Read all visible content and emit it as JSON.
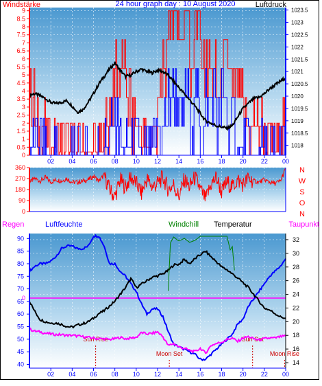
{
  "chart_data": [
    {
      "type": "line",
      "title": "24 hour graph day : 10 August 2020",
      "left_axis_label": "Windstärke",
      "right_axis_label": "Luftdruck",
      "x_ticks": [
        "02",
        "04",
        "06",
        "08",
        "10",
        "12",
        "14",
        "16",
        "18",
        "20",
        "22",
        "00"
      ],
      "left_ticks": [
        "0",
        "0.5",
        "1",
        "1.5",
        "2",
        "2.5",
        "3",
        "3.5",
        "4",
        "4.5",
        "5",
        "5.5",
        "6",
        "6.5",
        "7",
        "7.5",
        "8",
        "8.5",
        "9"
      ],
      "right_ticks": [
        "1018",
        "1018.5",
        "1019",
        "1019.5",
        "1020",
        "1020.5",
        "1021",
        "1021.5",
        "1022",
        "1022.5",
        "1023",
        "1023.5"
      ],
      "ylim_left": [
        0,
        9.2
      ],
      "ylim_right": [
        1017.6,
        1023.6
      ],
      "series": [
        {
          "axis": "right",
          "color": "#000000",
          "x": [
            0,
            0.5,
            1,
            1.5,
            2,
            2.5,
            3,
            3.5,
            4,
            4.5,
            5,
            5.5,
            6,
            6.5,
            7,
            7.5,
            8,
            8.5,
            9,
            9.5,
            10,
            10.5,
            11,
            11.5,
            12,
            12.5,
            13,
            13.5,
            14,
            14.5,
            15,
            15.5,
            16,
            16.5,
            17,
            17.5,
            18,
            18.5,
            19,
            19.5,
            20,
            20.5,
            21,
            21.5,
            22,
            22.5,
            23,
            23.5,
            24
          ],
          "values": [
            1020.05,
            1020.1,
            1020.02,
            1019.9,
            1019.75,
            1019.7,
            1019.75,
            1019.82,
            1019.6,
            1019.35,
            1019.45,
            1019.75,
            1020.1,
            1020.5,
            1020.8,
            1021.1,
            1021.35,
            1021.05,
            1020.8,
            1020.85,
            1021.0,
            1021.1,
            1021.0,
            1020.95,
            1021.05,
            1021.0,
            1020.85,
            1020.6,
            1020.35,
            1020.1,
            1019.85,
            1019.6,
            1019.3,
            1019.0,
            1018.9,
            1018.8,
            1018.75,
            1018.7,
            1018.8,
            1019.15,
            1019.5,
            1019.7,
            1019.9,
            1019.95,
            1020.1,
            1020.3,
            1020.45,
            1020.6,
            1020.75
          ]
        },
        {
          "axis": "left",
          "color": "#ff0000",
          "x": [
            0,
            0.5,
            1,
            1.5,
            2,
            2.5,
            3,
            3.5,
            4,
            4.5,
            5,
            5.5,
            6,
            6.5,
            7,
            7.5,
            8,
            8.5,
            9,
            9.5,
            10,
            10.5,
            11,
            11.5,
            12,
            12.5,
            13,
            13.5,
            14,
            14.5,
            15,
            15.5,
            16,
            16.5,
            17,
            17.5,
            18,
            18.5,
            19,
            19.5,
            20,
            20.5,
            21,
            21.5,
            22,
            22.5,
            23,
            23.5,
            24
          ],
          "values": [
            3.6,
            1.8,
            1.8,
            0.5,
            0.5,
            0.2,
            0.2,
            0.2,
            0.2,
            0.2,
            0.2,
            0.2,
            0.2,
            0.2,
            1.8,
            3.6,
            5.4,
            5.4,
            3.6,
            1.8,
            1.8,
            0.5,
            0.5,
            1.8,
            3.6,
            5.4,
            9,
            9,
            7.2,
            9,
            5.4,
            9,
            5.4,
            5.4,
            5.4,
            3.6,
            5.4,
            5.4,
            3.6,
            3.6,
            1.8,
            1.8,
            1.8,
            1.8,
            0.2,
            0.2,
            0.2,
            1.8,
            0.2
          ]
        },
        {
          "axis": "left",
          "color": "#0000ff",
          "x": [
            0,
            0.5,
            1,
            1.5,
            2,
            2.5,
            3,
            3.5,
            4,
            4.5,
            5,
            5.5,
            6,
            6.5,
            7,
            7.5,
            8,
            8.5,
            9,
            9.5,
            10,
            10.5,
            11,
            11.5,
            12,
            12.5,
            13,
            13.5,
            14,
            14.5,
            15,
            15.5,
            16,
            16.5,
            17,
            17.5,
            18,
            18.5,
            19,
            19.5,
            20,
            20.5,
            21,
            21.5,
            22,
            22.5,
            23,
            23.5,
            24
          ],
          "values": [
            0.5,
            0.5,
            0.5,
            0,
            0,
            0,
            0,
            0,
            0,
            0,
            0,
            0,
            0,
            0,
            0.5,
            1.8,
            1.8,
            0.5,
            0.5,
            0.5,
            0.5,
            0,
            0,
            0.5,
            1.8,
            1.8,
            3.6,
            3.6,
            1.8,
            3.6,
            1.8,
            3.6,
            1.8,
            3.6,
            3.6,
            1.8,
            3.6,
            1.8,
            1.8,
            0.5,
            0.5,
            0,
            0,
            0.5,
            0,
            0,
            0,
            0,
            0
          ]
        }
      ]
    },
    {
      "type": "line",
      "left_ticks": [
        "0",
        "90",
        "180",
        "270",
        "360"
      ],
      "right_labels": [
        "N",
        "W",
        "S",
        "O",
        "N"
      ],
      "ylim": [
        0,
        360
      ],
      "series": [
        {
          "color": "#ff0000",
          "x": [
            0,
            0.5,
            1,
            1.5,
            2,
            2.5,
            3,
            3.5,
            4,
            4.5,
            5,
            5.5,
            6,
            6.5,
            7,
            7.5,
            8,
            8.5,
            9,
            9.5,
            10,
            10.5,
            11,
            11.5,
            12,
            12.5,
            13,
            13.5,
            14,
            14.5,
            15,
            15.5,
            16,
            16.5,
            17,
            17.5,
            18,
            18.5,
            19,
            19.5,
            20,
            20.5,
            21,
            21.5,
            22,
            22.5,
            23,
            23.5,
            24
          ],
          "values": [
            240,
            270,
            250,
            280,
            240,
            260,
            250,
            270,
            240,
            240,
            250,
            260,
            290,
            250,
            300,
            180,
            120,
            260,
            200,
            280,
            230,
            150,
            270,
            200,
            230,
            280,
            180,
            220,
            120,
            260,
            200,
            280,
            180,
            100,
            220,
            280,
            160,
            240,
            200,
            260,
            220,
            270,
            250,
            240,
            260,
            240,
            230,
            250,
            350
          ]
        }
      ]
    },
    {
      "type": "line",
      "left_title": "Regen",
      "humidity_title": "Luftfeuchte",
      "windchill_title": "Windchill",
      "temperature_title": "Temperatur",
      "dewpoint_title": "Taupunkt",
      "x_ticks": [
        "02",
        "04",
        "06",
        "08",
        "10",
        "12",
        "14",
        "16",
        "18",
        "20",
        "22",
        "00"
      ],
      "left_ticks": [
        "40",
        "45",
        "50",
        "55",
        "60",
        "65",
        "70",
        "75",
        "80",
        "85",
        "90"
      ],
      "right_ticks": [
        "14",
        "16",
        "18",
        "20",
        "22",
        "24",
        "26",
        "28",
        "30",
        "32"
      ],
      "rain_zero_label": "0",
      "ylim_left": [
        38.5,
        92
      ],
      "ylim_right": [
        13.2,
        32.9
      ],
      "annotations": [
        {
          "text": "Sun Rise",
          "x": 6.2
        },
        {
          "text": "Moon Set",
          "x": 13.1
        },
        {
          "text": "Sun Set",
          "x": 20.9
        },
        {
          "text": "Moon Rise",
          "x": 23.9
        }
      ],
      "series": [
        {
          "axis": "left",
          "color": "#0000ff",
          "x": [
            0,
            0.5,
            1,
            1.5,
            2,
            2.5,
            3,
            3.5,
            4,
            4.5,
            5,
            5.5,
            6,
            6.5,
            7,
            7.5,
            8,
            8.5,
            9,
            9.5,
            10,
            10.5,
            11,
            11.5,
            12,
            12.5,
            13,
            13.5,
            14,
            14.5,
            15,
            15.5,
            16,
            16.5,
            17,
            17.5,
            18,
            18.5,
            19,
            19.5,
            20,
            20.5,
            21,
            21.5,
            22,
            22.5,
            23,
            23.5,
            24
          ],
          "values": [
            77,
            79,
            80,
            80,
            81,
            83,
            86,
            87,
            87,
            86,
            86,
            87,
            91,
            91,
            87,
            80,
            80,
            77,
            75,
            72,
            69,
            64,
            60,
            62,
            62,
            59,
            53,
            48,
            47,
            46,
            45,
            44,
            42,
            42,
            44,
            46,
            48,
            50,
            52,
            56,
            58,
            63,
            66,
            69,
            72,
            75,
            77,
            79,
            82
          ]
        },
        {
          "axis": "right",
          "color": "#000000",
          "x": [
            0,
            0.5,
            1,
            1.5,
            2,
            2.5,
            3,
            3.5,
            4,
            4.5,
            5,
            5.5,
            6,
            6.5,
            7,
            7.5,
            8,
            8.5,
            9,
            9.5,
            10,
            10.5,
            11,
            11.5,
            12,
            12.5,
            13,
            13.5,
            14,
            14.5,
            15,
            15.5,
            16,
            16.5,
            17,
            17.5,
            18,
            18.5,
            19,
            19.5,
            20,
            20.5,
            21,
            21.5,
            22,
            22.5,
            23,
            23.5,
            24
          ],
          "values": [
            23,
            21.5,
            20.3,
            20,
            19.8,
            19.8,
            19.6,
            19.3,
            19.2,
            19.5,
            19.7,
            20,
            20.5,
            21.2,
            21.6,
            22.3,
            23,
            24,
            25,
            26.3,
            25,
            25.5,
            26,
            26.5,
            26.7,
            27,
            27.5,
            28.3,
            28.4,
            29.1,
            28.5,
            29.2,
            29.8,
            30.3,
            29.5,
            28.8,
            28,
            27.6,
            27,
            26.4,
            25.7,
            25,
            24,
            23,
            22,
            21.7,
            21.2,
            20.7,
            20.5
          ]
        },
        {
          "axis": "right",
          "color": "#ff00ff",
          "x": [
            0,
            0.5,
            1,
            1.5,
            2,
            2.5,
            3,
            3.5,
            4,
            4.5,
            5,
            5.5,
            6,
            6.5,
            7,
            7.5,
            8,
            8.5,
            9,
            9.5,
            10,
            10.5,
            11,
            11.5,
            12,
            12.5,
            13,
            13.5,
            14,
            14.5,
            15,
            15.5,
            16,
            16.5,
            17,
            17.5,
            18,
            18.5,
            19,
            19.5,
            20,
            20.5,
            21,
            21.5,
            22,
            22.5,
            23,
            23.5,
            24
          ],
          "values": [
            18.9,
            18.6,
            18.5,
            18.3,
            18.2,
            18.1,
            18.1,
            18,
            18,
            17.9,
            17.8,
            17.7,
            17.6,
            17.5,
            17.5,
            17.4,
            17.5,
            17.7,
            17.5,
            17.6,
            17.7,
            18.4,
            18.2,
            18.3,
            18.5,
            17.8,
            16.5,
            16.8,
            16.3,
            16.1,
            15.8,
            15.6,
            16.1,
            15.4,
            16.5,
            16.8,
            17,
            17.4,
            17.6,
            17.1,
            17.6,
            17.8,
            17.5,
            17.3,
            17.5,
            17.6,
            17.6,
            17.8,
            17.9
          ]
        },
        {
          "axis": "right",
          "color": "#008000",
          "x": [
            13,
            13.2,
            13.5,
            14,
            14.5,
            15,
            15.5,
            16,
            16.5,
            17,
            17.5,
            18,
            18.5,
            18.8,
            19,
            19.2
          ],
          "values": [
            24.5,
            31.5,
            32.4,
            31.8,
            32.2,
            31.6,
            31.9,
            32.5,
            32.5,
            32.5,
            32.5,
            32.5,
            32.5,
            30.5,
            31,
            27.5
          ]
        }
      ]
    }
  ]
}
